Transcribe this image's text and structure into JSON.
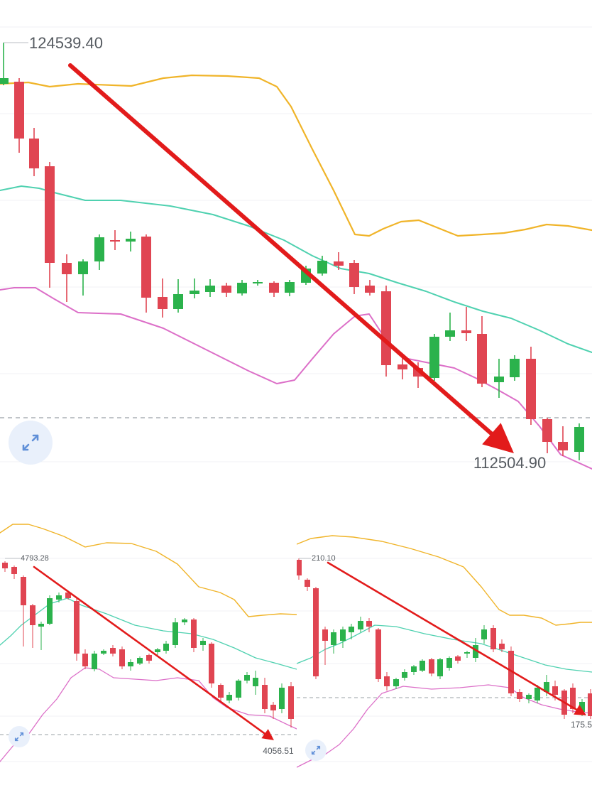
{
  "chart_data": [
    {
      "type": "candlestick",
      "panel": "main",
      "high_label": "124539.40",
      "low_label": "112504.90",
      "grid": true,
      "indicators": [
        "bollinger-upper",
        "bollinger-middle",
        "bollinger-lower"
      ],
      "colors": {
        "up": "#2bb24c",
        "down": "#e04552",
        "upper_band": "#f0b429",
        "middle_band": "#4fd1b0",
        "lower_band": "#dc6fc8",
        "arrow": "#e21b1b"
      }
    },
    {
      "type": "candlestick",
      "panel": "bottom-left",
      "high_label": "4793.28",
      "low_label": "4056.51",
      "grid": true,
      "indicators": [
        "bollinger-upper",
        "bollinger-middle",
        "bollinger-lower"
      ]
    },
    {
      "type": "candlestick",
      "panel": "bottom-right",
      "high_label": "210.10",
      "low_label": "175.5",
      "grid": true,
      "indicators": [
        "bollinger-upper",
        "bollinger-middle",
        "bollinger-lower"
      ]
    }
  ],
  "icons": {
    "expand": "expand-arrows-icon"
  }
}
